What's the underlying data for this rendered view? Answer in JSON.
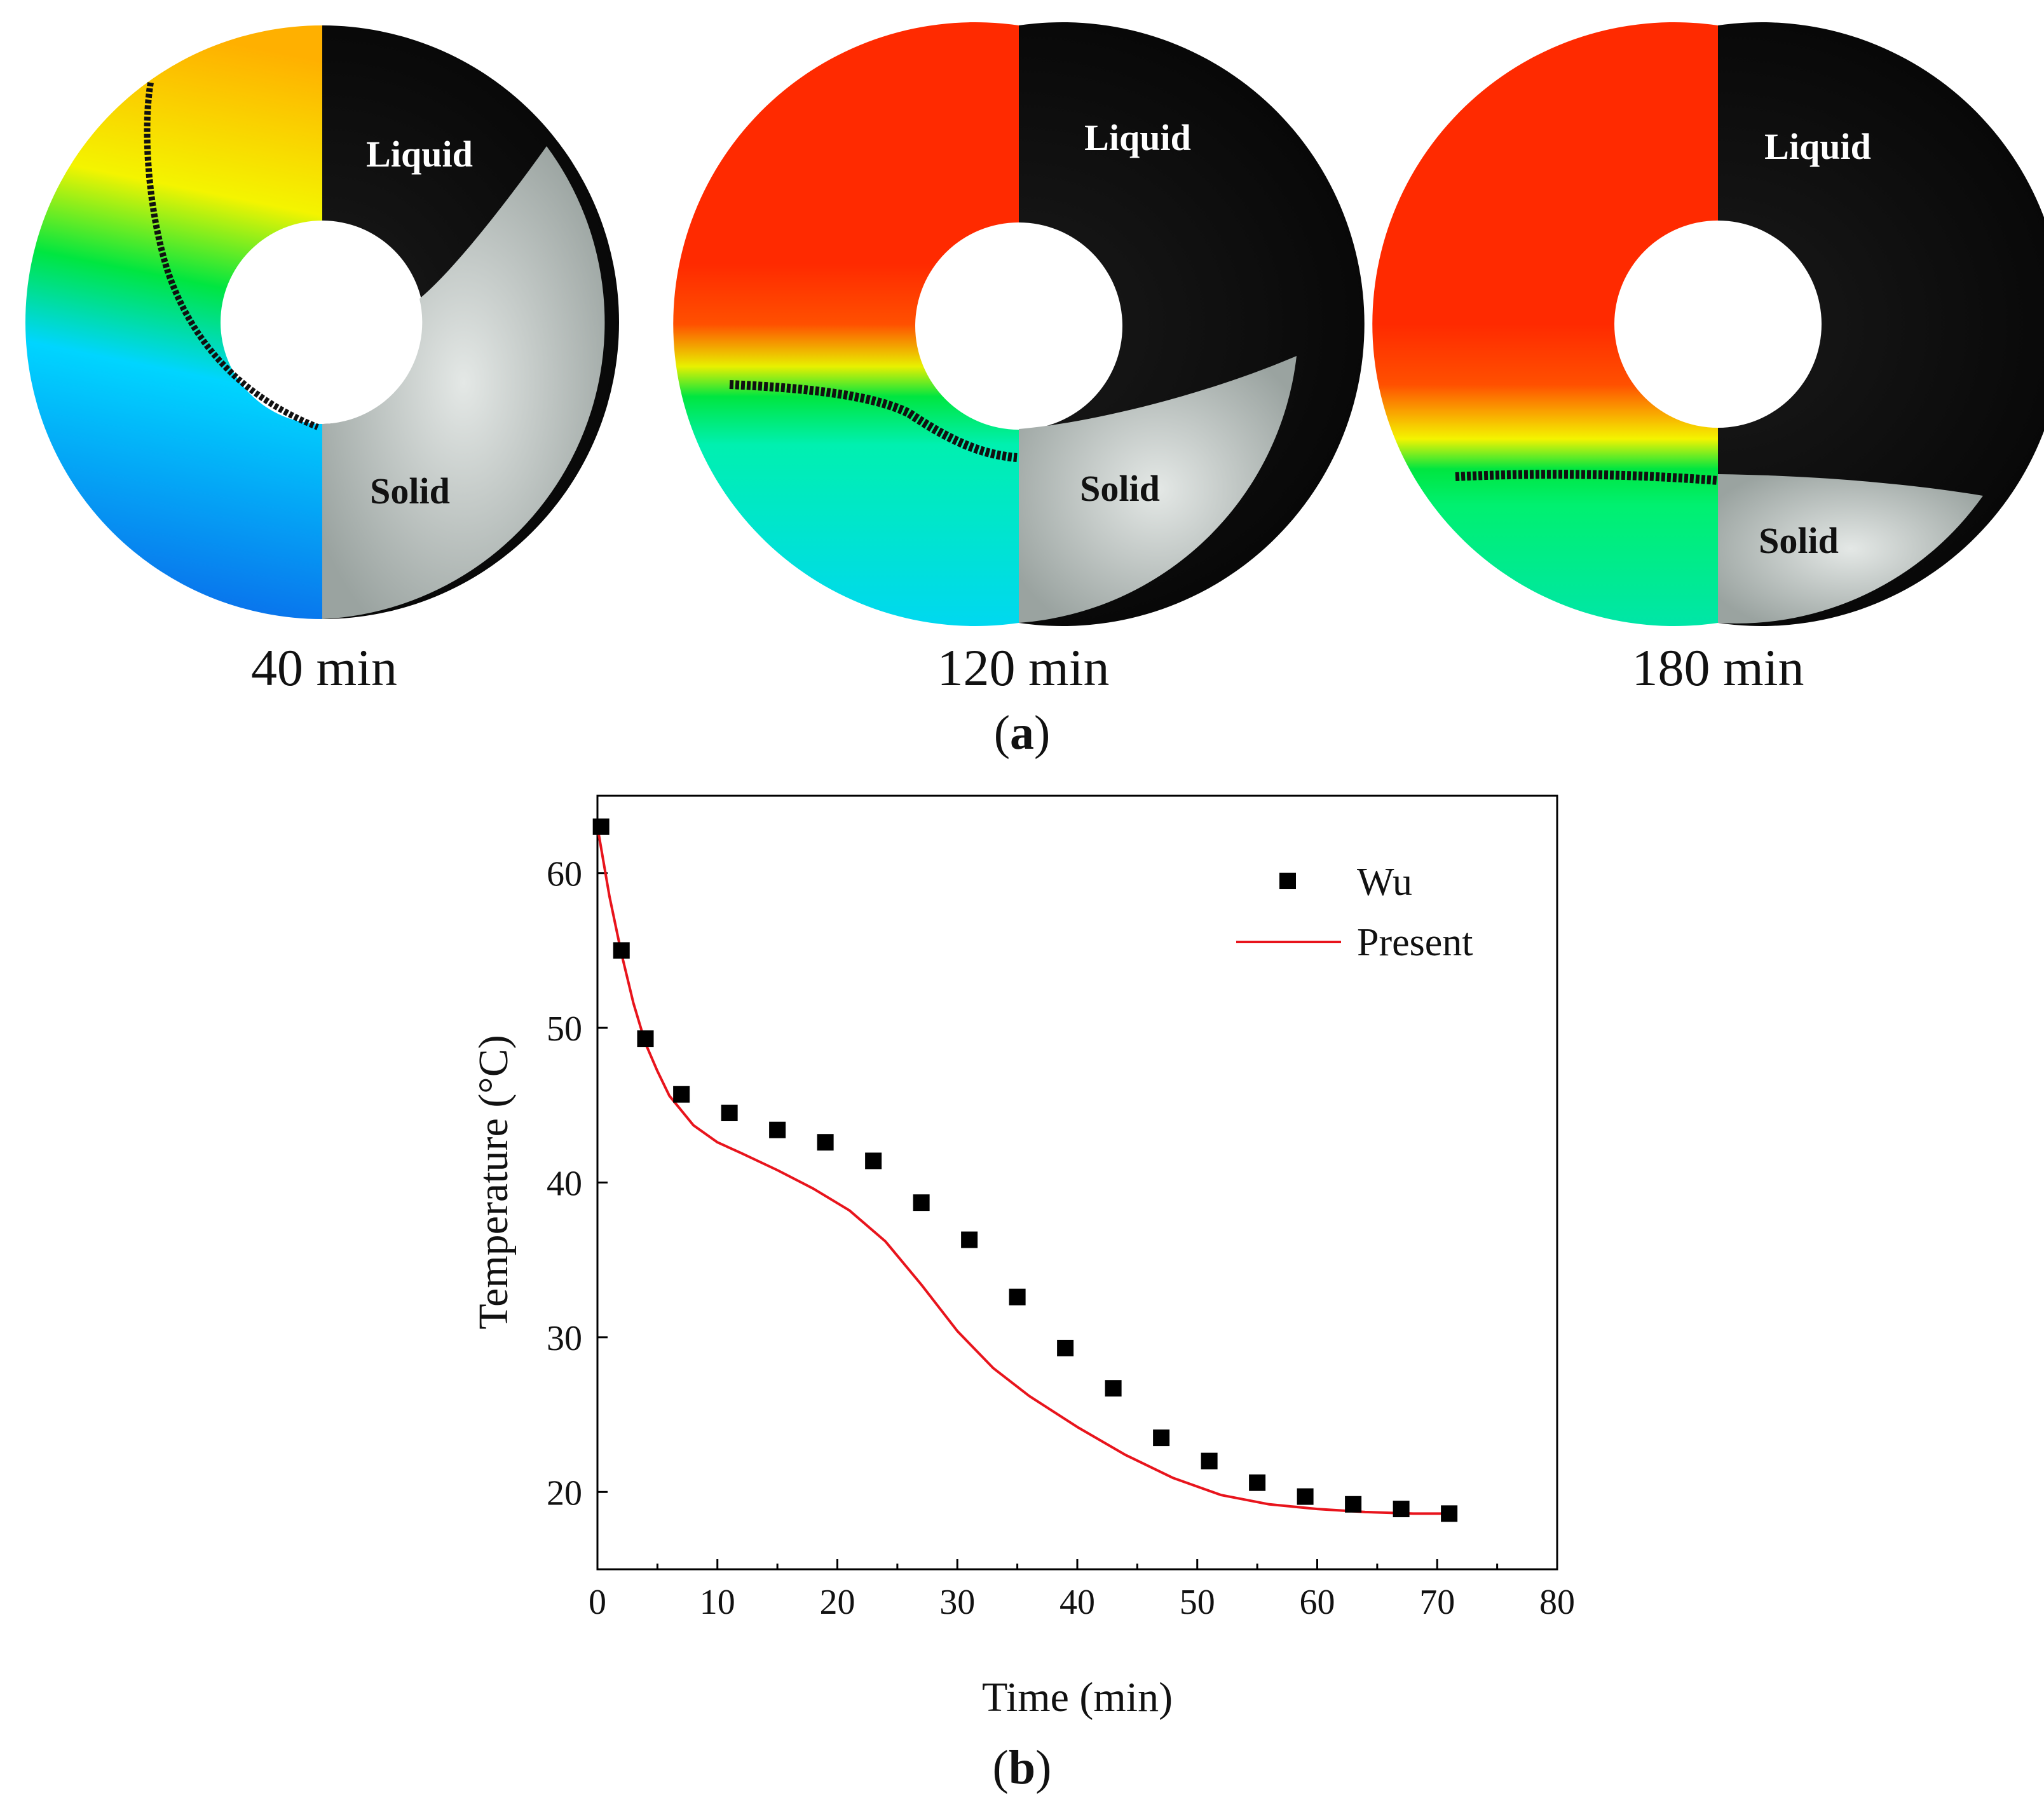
{
  "panel_a": {
    "caption_letter": "a",
    "rings": [
      {
        "time_label": "40 min",
        "liquid_label": "Liquid",
        "solid_label": "Solid"
      },
      {
        "time_label": "120 min",
        "liquid_label": "Liquid",
        "solid_label": "Solid"
      },
      {
        "time_label": "180 min",
        "liquid_label": "Liquid",
        "solid_label": "Solid"
      }
    ],
    "colors": {
      "hot": "#ff2a00",
      "warm": "#ffb000",
      "mid": "#f4f400",
      "green": "#00e640",
      "cyan": "#00e5ff",
      "cold": "#0b5fe8",
      "photo_dark": "#0b0b0b",
      "photo_solid": "#c9cfcc",
      "interface_line": "#111111"
    }
  },
  "panel_b": {
    "caption_letter": "b",
    "chart_data": {
      "type": "scatter",
      "xlabel": "Time (min)",
      "ylabel": "Temperature (°C)",
      "xlim": [
        0,
        80
      ],
      "ylim": [
        15,
        65
      ],
      "xticks": [
        0,
        10,
        20,
        30,
        40,
        50,
        60,
        70,
        80
      ],
      "yticks": [
        20,
        30,
        40,
        50,
        60
      ],
      "grid": false,
      "legend_position": "top-right",
      "series": [
        {
          "name": "Wu",
          "kind": "scatter",
          "marker": "square",
          "color": "#000000",
          "x": [
            0.3,
            2,
            4,
            7,
            11,
            15,
            19,
            23,
            27,
            31,
            35,
            39,
            43,
            47,
            51,
            55,
            59,
            63,
            67,
            71
          ],
          "y": [
            63,
            55,
            49.3,
            45.7,
            44.5,
            43.4,
            42.6,
            41.4,
            38.7,
            36.3,
            32.6,
            29.3,
            26.7,
            23.5,
            22.0,
            20.6,
            19.7,
            19.2,
            18.9,
            18.6
          ]
        },
        {
          "name": "Present",
          "kind": "line",
          "color": "#e8141c",
          "x": [
            0,
            1,
            2,
            3,
            4,
            5,
            6,
            8,
            10,
            12,
            15,
            18,
            21,
            24,
            27,
            30,
            33,
            36,
            40,
            44,
            48,
            52,
            56,
            60,
            64,
            68,
            71
          ],
          "y": [
            63,
            58.5,
            54.8,
            51.6,
            49.0,
            47.2,
            45.6,
            43.7,
            42.6,
            41.9,
            40.8,
            39.6,
            38.2,
            36.2,
            33.4,
            30.4,
            28.0,
            26.2,
            24.2,
            22.4,
            20.9,
            19.8,
            19.2,
            18.9,
            18.7,
            18.6,
            18.6
          ]
        }
      ]
    }
  }
}
